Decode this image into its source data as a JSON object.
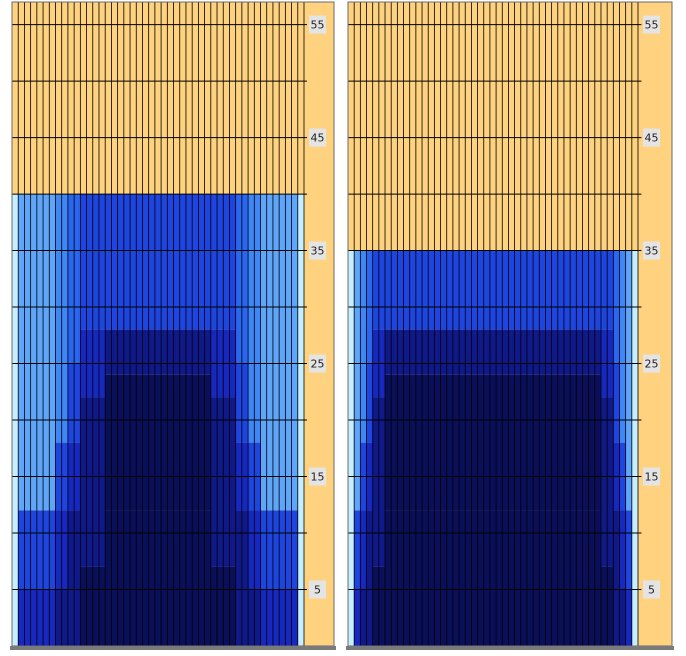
{
  "colors": {
    "background_grid": "#FFD27F",
    "grid_line": "#000000",
    "label_box": "#E4E4E4",
    "cell_outline": "#101020"
  },
  "chart_data": [
    {
      "type": "heatmap",
      "panel": "left",
      "ytick_labels": [
        "5",
        "15",
        "25",
        "35",
        "45",
        "55"
      ],
      "yticks": [
        5,
        15,
        25,
        35,
        45,
        55
      ],
      "ylim": [
        0,
        57
      ],
      "xlim": [
        0,
        47
      ],
      "columns": 47,
      "filled_height": 40,
      "grid": true,
      "band_note": "Columns with filled bands from bottom (dark) to top (light), outer columns lighter",
      "bands_by_column": [
        {
          "from": 0,
          "to": 1,
          "profile": "edge"
        },
        {
          "from": 1,
          "to": 7,
          "profile": "outer"
        },
        {
          "from": 7,
          "to": 9,
          "profile": "shoulder1"
        },
        {
          "from": 9,
          "to": 11,
          "profile": "shoulder2"
        },
        {
          "from": 11,
          "to": 15,
          "profile": "shoulder3"
        },
        {
          "from": 15,
          "to": 32,
          "profile": "core"
        },
        {
          "from": 32,
          "to": 36,
          "profile": "shoulder3"
        },
        {
          "from": 36,
          "to": 38,
          "profile": "shoulder2"
        },
        {
          "from": 38,
          "to": 40,
          "profile": "shoulder1"
        },
        {
          "from": 40,
          "to": 46,
          "profile": "outer"
        },
        {
          "from": 46,
          "to": 47,
          "profile": "edge"
        }
      ]
    },
    {
      "type": "heatmap",
      "panel": "right",
      "ytick_labels": [
        "5",
        "15",
        "25",
        "35",
        "45",
        "55"
      ],
      "yticks": [
        5,
        15,
        25,
        35,
        45,
        55
      ],
      "ylim": [
        0,
        57
      ],
      "xlim": [
        0,
        47
      ],
      "columns": 47,
      "filled_height": 35,
      "grid": true,
      "bands_by_column": [
        {
          "from": 0,
          "to": 1,
          "profile": "edge"
        },
        {
          "from": 1,
          "to": 2,
          "profile": "outer"
        },
        {
          "from": 2,
          "to": 3,
          "profile": "shoulder1"
        },
        {
          "from": 3,
          "to": 4,
          "profile": "shoulder2"
        },
        {
          "from": 4,
          "to": 6,
          "profile": "shoulder3"
        },
        {
          "from": 6,
          "to": 41,
          "profile": "core"
        },
        {
          "from": 41,
          "to": 43,
          "profile": "shoulder3"
        },
        {
          "from": 43,
          "to": 44,
          "profile": "shoulder2"
        },
        {
          "from": 44,
          "to": 45,
          "profile": "shoulder1"
        },
        {
          "from": 45,
          "to": 46,
          "profile": "outer"
        },
        {
          "from": 46,
          "to": 47,
          "profile": "edge"
        }
      ]
    }
  ]
}
